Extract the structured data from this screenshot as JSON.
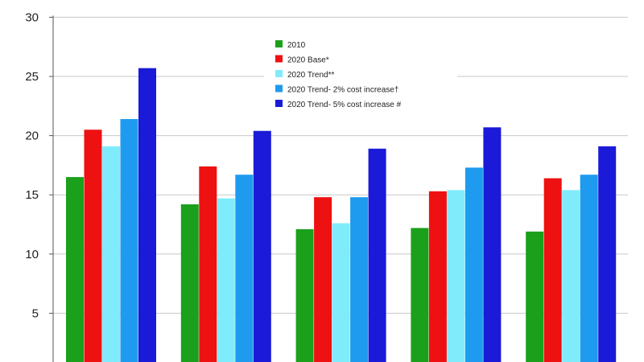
{
  "chart_data": {
    "type": "bar",
    "title": "",
    "xlabel": "",
    "ylabel": "",
    "ylim": [
      0,
      30
    ],
    "yticks": [
      5,
      10,
      15,
      20,
      25,
      30
    ],
    "grid": "horizontal",
    "legend_position": "top-center",
    "categories": [
      "",
      "",
      "",
      "",
      ""
    ],
    "series": [
      {
        "name": "2010",
        "color": "#1aa01a",
        "values": [
          16.5,
          14.2,
          12.1,
          12.2,
          11.9
        ]
      },
      {
        "name": "2020 Base*",
        "color": "#ee1111",
        "values": [
          20.5,
          17.4,
          14.8,
          15.3,
          16.4
        ]
      },
      {
        "name": "2020 Trend**",
        "color": "#80ecfb",
        "values": [
          19.1,
          14.7,
          12.6,
          15.4,
          15.4
        ]
      },
      {
        "name": "2020 Trend- 2% cost increase†",
        "color": "#1e9bef",
        "values": [
          21.4,
          16.7,
          14.8,
          17.3,
          16.7
        ]
      },
      {
        "name": "2020 Trend- 5% cost increase #",
        "color": "#1a1ad8",
        "values": [
          25.7,
          20.4,
          18.9,
          20.7,
          19.1
        ]
      }
    ]
  }
}
